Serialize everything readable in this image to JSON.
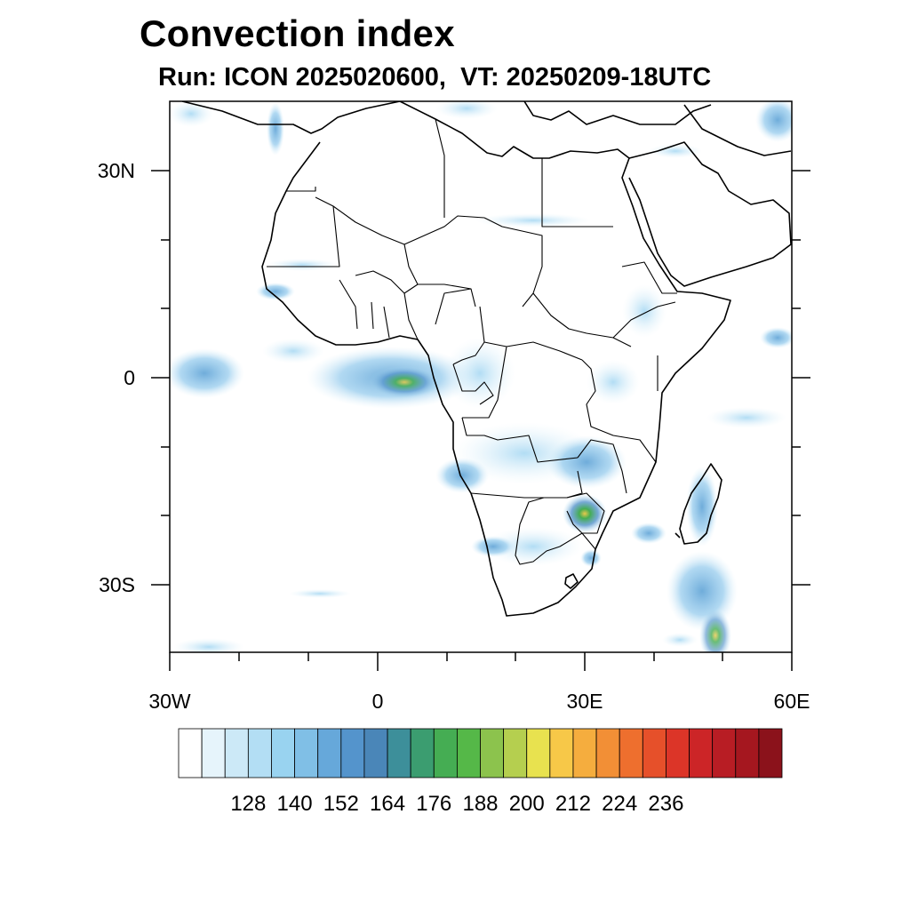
{
  "title": "Convection index",
  "subtitle": "Run: ICON 2025020600,  VT: 20250209-18UTC",
  "map": {
    "region": "Africa",
    "lon_range": [
      -30,
      60
    ],
    "lat_range": [
      -40,
      40
    ],
    "lon_tick_labels": [
      "30W",
      "0",
      "30E",
      "60E"
    ],
    "lat_tick_labels": [
      "30N",
      "0",
      "30S"
    ]
  },
  "colorbar": {
    "labels": [
      "128",
      "140",
      "152",
      "164",
      "176",
      "188",
      "200",
      "212",
      "224",
      "236"
    ],
    "colors": [
      "#ffffff",
      "#e6f4fb",
      "#cce9f7",
      "#b3def4",
      "#99d3f0",
      "#80bfe6",
      "#66a8da",
      "#5494cc",
      "#4a86b8",
      "#3d8f9a",
      "#3b9d70",
      "#45ad53",
      "#55b848",
      "#8cc34d",
      "#b5cf4f",
      "#e8e24f",
      "#f7c848",
      "#f5ad3e",
      "#f28f36",
      "#ee6f2e",
      "#e6502a",
      "#dc3528",
      "#cc2527",
      "#b81d24",
      "#a5171f",
      "#8b121b"
    ]
  },
  "icons": [
    "coastline-outline",
    "country-borders"
  ]
}
